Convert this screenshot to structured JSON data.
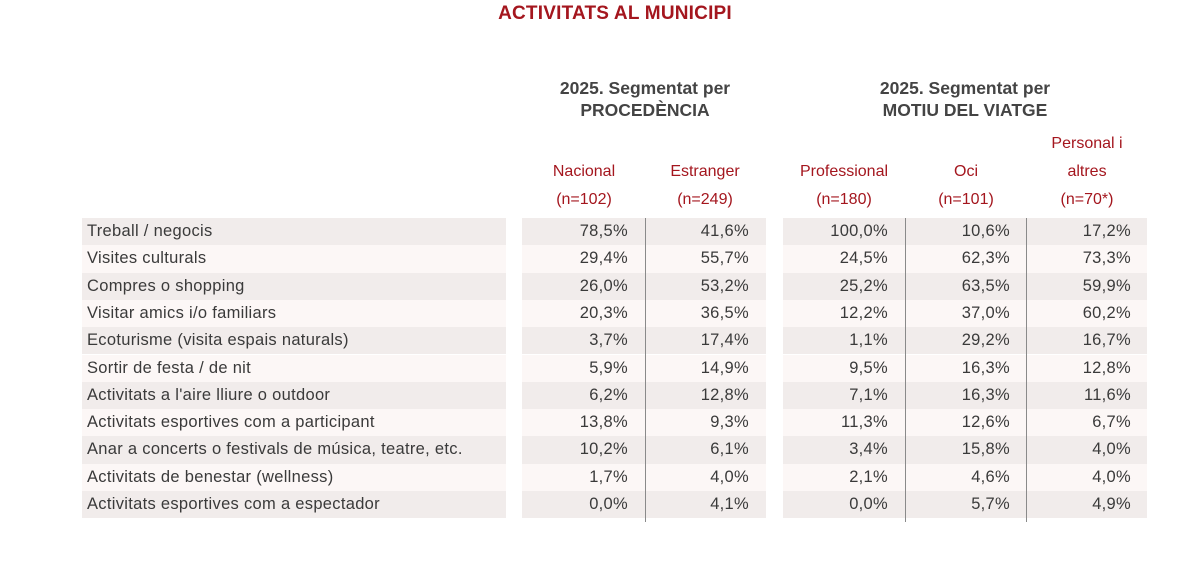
{
  "title": "ACTIVITATS AL MUNICIPI",
  "groups": [
    {
      "line1": "2025. Segmentat per",
      "line2": "PROCEDÈNCIA"
    },
    {
      "line1": "2025. Segmentat per",
      "line2": "MOTIU DEL VIATGE"
    }
  ],
  "columns": [
    {
      "line1": "",
      "line2": "Nacional",
      "line3": "(n=102)"
    },
    {
      "line1": "",
      "line2": "Estranger",
      "line3": "(n=249)"
    },
    {
      "line1": "",
      "line2": "Professional",
      "line3": "(n=180)"
    },
    {
      "line1": "",
      "line2": "Oci",
      "line3": "(n=101)"
    },
    {
      "line1": "Personal i",
      "line2": "altres",
      "line3": "(n=70*)"
    }
  ],
  "rows": [
    {
      "label": "Treball / negocis",
      "values": [
        "78,5%",
        "41,6%",
        "100,0%",
        "10,6%",
        "17,2%"
      ]
    },
    {
      "label": "Visites culturals",
      "values": [
        "29,4%",
        "55,7%",
        "24,5%",
        "62,3%",
        "73,3%"
      ]
    },
    {
      "label": "Compres o shopping",
      "values": [
        "26,0%",
        "53,2%",
        "25,2%",
        "63,5%",
        "59,9%"
      ]
    },
    {
      "label": "Visitar amics i/o familiars",
      "values": [
        "20,3%",
        "36,5%",
        "12,2%",
        "37,0%",
        "60,2%"
      ]
    },
    {
      "label": "Ecoturisme (visita espais naturals)",
      "values": [
        "3,7%",
        "17,4%",
        "1,1%",
        "29,2%",
        "16,7%"
      ]
    },
    {
      "label": "Sortir de festa / de nit",
      "values": [
        "5,9%",
        "14,9%",
        "9,5%",
        "16,3%",
        "12,8%"
      ]
    },
    {
      "label": "Activitats a l'aire lliure o outdoor",
      "values": [
        "6,2%",
        "12,8%",
        "7,1%",
        "16,3%",
        "11,6%"
      ]
    },
    {
      "label": "Activitats esportives com a participant",
      "values": [
        "13,8%",
        "9,3%",
        "11,3%",
        "12,6%",
        "6,7%"
      ]
    },
    {
      "label": "Anar a concerts o festivals de música, teatre, etc.",
      "values": [
        "10,2%",
        "6,1%",
        "3,4%",
        "15,8%",
        "4,0%"
      ]
    },
    {
      "label": "Activitats de benestar (wellness)",
      "values": [
        "1,7%",
        "4,0%",
        "2,1%",
        "4,6%",
        "4,0%"
      ]
    },
    {
      "label": "Activitats esportives com a espectador",
      "values": [
        "0,0%",
        "4,1%",
        "0,0%",
        "5,7%",
        "4,9%"
      ]
    }
  ],
  "colors": {
    "accent": "#a4161e",
    "row_even": "#f1eceb",
    "row_odd": "#fcf7f6"
  }
}
